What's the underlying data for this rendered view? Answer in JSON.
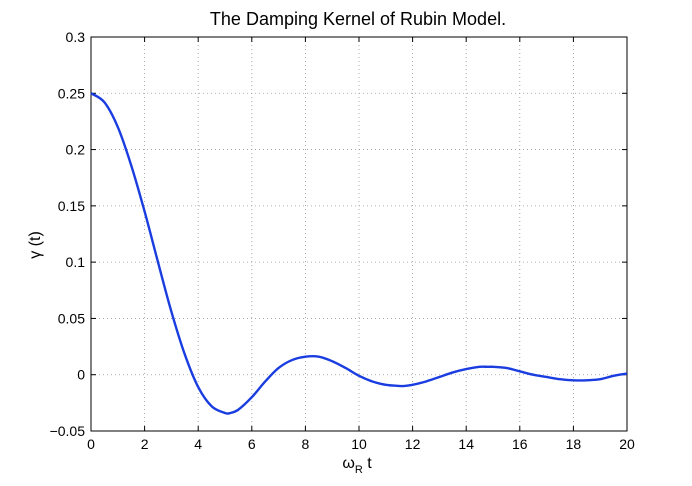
{
  "chart_data": {
    "type": "line",
    "title": "The Damping Kernel of Rubin Model.",
    "xlabel": {
      "symbol": "ω",
      "subscript": "R",
      "suffix": " t"
    },
    "ylabel": "γ (t)",
    "xlim": [
      0,
      20
    ],
    "ylim": [
      -0.05,
      0.3
    ],
    "xticks": [
      "0",
      "2",
      "4",
      "6",
      "8",
      "10",
      "12",
      "14",
      "16",
      "18",
      "20"
    ],
    "yticks": [
      "−0.05",
      "0",
      "0.05",
      "0.1",
      "0.15",
      "0.2",
      "0.25",
      "0.3"
    ],
    "grid": true,
    "series": [
      {
        "color": "#1a3de0",
        "x": [
          0,
          0.5,
          1,
          1.5,
          2,
          2.5,
          3,
          3.5,
          4,
          4.5,
          5,
          5.2,
          5.5,
          6,
          6.5,
          7,
          7.5,
          8,
          8.5,
          9,
          9.5,
          10,
          10.5,
          11,
          11.5,
          11.7,
          12,
          12.5,
          13,
          13.5,
          14,
          14.5,
          14.8,
          15,
          15.5,
          16,
          16.5,
          17,
          17.5,
          18,
          18.5,
          19,
          19.5,
          20
        ],
        "y": [
          0.25,
          0.242,
          0.22,
          0.186,
          0.145,
          0.1,
          0.056,
          0.018,
          -0.011,
          -0.028,
          -0.034,
          -0.034,
          -0.031,
          -0.02,
          -0.006,
          0.006,
          0.013,
          0.016,
          0.016,
          0.012,
          0.006,
          -0.001,
          -0.006,
          -0.009,
          -0.01,
          -0.01,
          -0.009,
          -0.006,
          -0.002,
          0.002,
          0.005,
          0.007,
          0.007,
          0.007,
          0.006,
          0.003,
          0.0,
          -0.002,
          -0.004,
          -0.005,
          -0.005,
          -0.004,
          -0.001,
          0.001
        ]
      }
    ]
  }
}
